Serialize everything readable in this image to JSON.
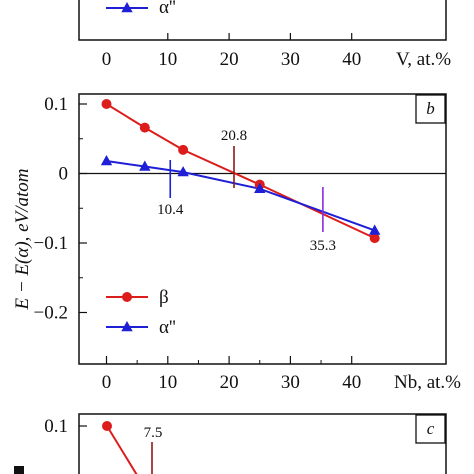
{
  "chart_data": [
    {
      "panel": "a",
      "type": "line",
      "xlabel": "V, at.%",
      "x_ticks": [
        "0",
        "10",
        "20",
        "30",
        "40"
      ],
      "xlim": [
        0,
        50
      ],
      "legend": [
        {
          "marker": "triangle",
          "label": "α''",
          "color": "#1f1fd6"
        }
      ],
      "legend_placement": "bottom-left"
    },
    {
      "panel": "b",
      "type": "line",
      "ylabel": "E − E(α), eV/atom",
      "xlabel": "Nb, at.%",
      "x_ticks": [
        "0",
        "10",
        "20",
        "30",
        "40"
      ],
      "y_ticks": [
        "0.1",
        "0",
        "−0.1",
        "−0.2"
      ],
      "xlim": [
        -5,
        50
      ],
      "ylim": [
        -0.25,
        0.14
      ],
      "grid": false,
      "zero_line": true,
      "legend_placement": "bottom-left",
      "series": [
        {
          "name": "β",
          "marker": "circle",
          "color": "#dd1c1c",
          "x": [
            0,
            6.25,
            12.5,
            25,
            43.75
          ],
          "y": [
            0.1,
            0.066,
            0.034,
            -0.016,
            -0.093
          ]
        },
        {
          "name": "α''",
          "marker": "triangle",
          "color": "#1f1fd6",
          "x": [
            0,
            6.25,
            12.5,
            25,
            43.75
          ],
          "y": [
            0.018,
            0.01,
            0.002,
            -0.022,
            -0.082
          ]
        }
      ],
      "annotations": [
        {
          "text": "20.8",
          "x": 20.8,
          "color": "#8b1a1a"
        },
        {
          "text": "10.4",
          "x": 10.4,
          "color": "#1f1fd6"
        },
        {
          "text": "35.3",
          "x": 35.3,
          "color": "#8a2be2"
        }
      ]
    },
    {
      "panel": "c",
      "type": "line",
      "y_ticks": [
        "0.1"
      ],
      "series": [
        {
          "name": "β",
          "marker": "circle",
          "color": "#dd1c1c",
          "x": [
            0,
            6.25
          ],
          "y": [
            0.1,
            0.05
          ]
        }
      ],
      "annotations": [
        {
          "text": "7.5",
          "x": 7.5
        }
      ]
    }
  ],
  "panels": {
    "a": {
      "legend_label": "α''",
      "xlabel": "V, at.%"
    },
    "b": {
      "letter": "b",
      "ylabel": "E − E(α), eV/atom",
      "xlabel": "Nb, at.%",
      "legend": [
        "β",
        "α''"
      ]
    },
    "c": {
      "letter": "c",
      "ytick": "0.1",
      "annotation": "7.5"
    }
  },
  "colors": {
    "beta": "#dd1c1c",
    "alpha2": "#1f1fd6",
    "ann_208": "#8b1a1a",
    "ann_353": "#8a2be2"
  }
}
